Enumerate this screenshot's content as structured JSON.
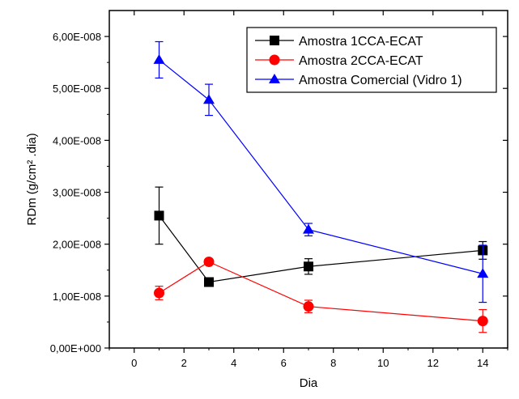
{
  "chart_data": {
    "type": "line",
    "title": "",
    "xlabel": "Dia",
    "ylabel": "RDm (g/cm² .dia)",
    "xlim": [
      -1,
      15
    ],
    "ylim": [
      0,
      6.5e-08
    ],
    "x_ticks": [
      0,
      2,
      4,
      6,
      8,
      10,
      12,
      14
    ],
    "x_tick_labels": [
      "0",
      "2",
      "4",
      "6",
      "8",
      "10",
      "12",
      "14"
    ],
    "y_ticks": [
      0,
      1e-08,
      2e-08,
      3e-08,
      4e-08,
      5e-08,
      6e-08
    ],
    "y_tick_labels": [
      "0,00E+000",
      "1,00E-008",
      "2,00E-008",
      "3,00E-008",
      "4,00E-008",
      "5,00E-008",
      "6,00E-008"
    ],
    "grid": false,
    "legend_position": "top-right",
    "x": [
      1,
      3,
      7,
      14
    ],
    "series": [
      {
        "name": "Amostra 1CCA-ECAT",
        "color": "#000000",
        "marker": "square",
        "values": [
          2.55e-08,
          1.27e-08,
          1.57e-08,
          1.88e-08
        ],
        "errors": [
          5.5e-09,
          5e-10,
          1.5e-09,
          1.7e-09
        ]
      },
      {
        "name": "Amostra 2CCA-ECAT",
        "color": "#ff0000",
        "marker": "circle",
        "values": [
          1.06e-08,
          1.66e-08,
          8e-09,
          5.2e-09
        ],
        "errors": [
          1.3e-09,
          3e-10,
          1.2e-09,
          2.2e-09
        ]
      },
      {
        "name": "Amostra Comercial (Vidro 1)",
        "color": "#0000ff",
        "marker": "triangle",
        "values": [
          5.55e-08,
          4.78e-08,
          2.28e-08,
          1.43e-08
        ],
        "errors": [
          3.5e-09,
          3e-09,
          1.2e-09,
          5.5e-09
        ]
      }
    ]
  }
}
